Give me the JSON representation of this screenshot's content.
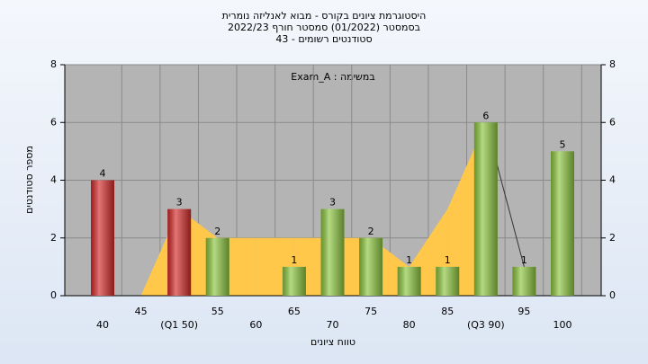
{
  "chart_data": {
    "type": "bar",
    "title": [
      "היסטוגרמת ציונים בקורס - מבוא לאנליזה נומרית",
      "בסמסטר  (01/2022)  סמסטר חורף 2022/23",
      "סטודנטים רשומים - 43"
    ],
    "annotation": "Exam_A : במשימה",
    "xlabel": "טווח ציונים",
    "ylabel": "מספר סטודנטים",
    "categories": [
      "40",
      "45",
      "(Q1 50)",
      "55",
      "60",
      "65",
      "70",
      "75",
      "80",
      "85",
      "(Q3 90)",
      "95",
      "100"
    ],
    "values": [
      4,
      0,
      3,
      2,
      0,
      1,
      3,
      2,
      1,
      1,
      6,
      1,
      5
    ],
    "colors": [
      "#d42a2a",
      "#d42a2a",
      "#d42a2a",
      "#8cc63f",
      "#8cc63f",
      "#8cc63f",
      "#8cc63f",
      "#8cc63f",
      "#8cc63f",
      "#8cc63f",
      "#8cc63f",
      "#8cc63f",
      "#8cc63f"
    ],
    "area_values": [
      null,
      0,
      3,
      2,
      2,
      2,
      2,
      2,
      1,
      3,
      6,
      1,
      null
    ],
    "area_colors": [
      "#c8c8c8",
      "#ffc84a",
      "#ffc84a",
      "#ffc84a",
      "#ffc84a",
      "#ffc84a",
      "#ffc84a",
      "#ffc84a",
      "#ffc84a",
      "#ffc84a",
      "none",
      "none"
    ],
    "ylim": [
      0,
      8
    ],
    "yticks": [
      0,
      2,
      4,
      6,
      8
    ],
    "y2lim": [
      0,
      8
    ],
    "y2ticks": [
      0,
      2,
      4,
      6,
      8
    ],
    "grid": true
  }
}
